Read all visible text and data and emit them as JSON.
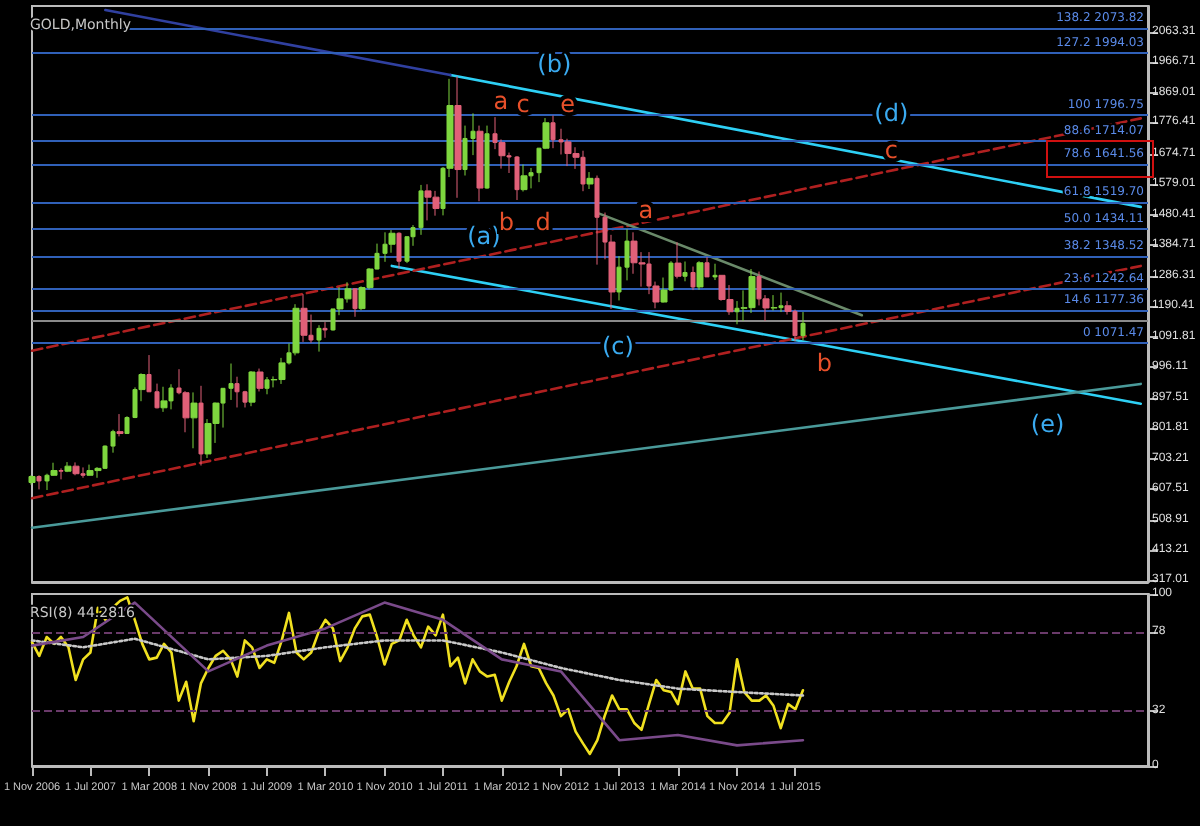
{
  "chart_data": [
    {
      "type": "candlestick",
      "title": "GOLD,Monthly",
      "x": [
        "2006-11",
        "2006-12",
        "2007-01",
        "2007-02",
        "2007-03",
        "2007-04",
        "2007-05",
        "2007-06",
        "2007-07",
        "2007-08",
        "2007-09",
        "2007-10",
        "2007-11",
        "2007-12",
        "2008-01",
        "2008-02",
        "2008-03",
        "2008-04",
        "2008-05",
        "2008-06",
        "2008-07",
        "2008-08",
        "2008-09",
        "2008-10",
        "2008-11",
        "2008-12",
        "2009-01",
        "2009-02",
        "2009-03",
        "2009-04",
        "2009-05",
        "2009-06",
        "2009-07",
        "2009-08",
        "2009-09",
        "2009-10",
        "2009-11",
        "2009-12",
        "2010-01",
        "2010-02",
        "2010-03",
        "2010-04",
        "2010-05",
        "2010-06",
        "2010-07",
        "2010-08",
        "2010-09",
        "2010-10",
        "2010-11",
        "2010-12",
        "2011-01",
        "2011-02",
        "2011-03",
        "2011-04",
        "2011-05",
        "2011-06",
        "2011-07",
        "2011-08",
        "2011-09",
        "2011-10",
        "2011-11",
        "2011-12",
        "2012-01",
        "2012-02",
        "2012-03",
        "2012-04",
        "2012-05",
        "2012-06",
        "2012-07",
        "2012-08",
        "2012-09",
        "2012-10",
        "2012-11",
        "2012-12",
        "2013-01",
        "2013-02",
        "2013-03",
        "2013-04",
        "2013-05",
        "2013-06",
        "2013-07",
        "2013-08",
        "2013-09",
        "2013-10",
        "2013-11",
        "2013-12",
        "2014-01",
        "2014-02",
        "2014-03",
        "2014-04",
        "2014-05",
        "2014-06",
        "2014-07",
        "2014-08",
        "2014-09",
        "2014-10",
        "2014-11",
        "2014-12",
        "2015-01",
        "2015-02",
        "2015-03",
        "2015-04",
        "2015-05",
        "2015-06",
        "2015-07",
        "2015-08"
      ],
      "ohlc": [
        [
          627,
          650,
          620,
          646
        ],
        [
          646,
          650,
          605,
          632
        ],
        [
          632,
          655,
          603,
          650
        ],
        [
          650,
          690,
          648,
          665
        ],
        [
          665,
          672,
          637,
          663
        ],
        [
          663,
          692,
          660,
          679
        ],
        [
          679,
          691,
          650,
          655
        ],
        [
          655,
          675,
          642,
          650
        ],
        [
          650,
          684,
          649,
          665
        ],
        [
          665,
          676,
          642,
          672
        ],
        [
          672,
          745,
          670,
          743
        ],
        [
          743,
          795,
          722,
          789
        ],
        [
          789,
          845,
          774,
          783
        ],
        [
          783,
          838,
          782,
          834
        ],
        [
          834,
          930,
          832,
          923
        ],
        [
          923,
          975,
          886,
          971
        ],
        [
          971,
          1033,
          915,
          916
        ],
        [
          916,
          942,
          863,
          865
        ],
        [
          865,
          932,
          852,
          887
        ],
        [
          887,
          940,
          860,
          928
        ],
        [
          928,
          988,
          908,
          913
        ],
        [
          913,
          918,
          787,
          833
        ],
        [
          833,
          914,
          736,
          880
        ],
        [
          880,
          935,
          681,
          718
        ],
        [
          718,
          829,
          705,
          815
        ],
        [
          815,
          882,
          753,
          880
        ],
        [
          880,
          928,
          802,
          927
        ],
        [
          927,
          1006,
          890,
          942
        ],
        [
          942,
          964,
          866,
          916
        ],
        [
          916,
          919,
          866,
          883
        ],
        [
          883,
          982,
          870,
          979
        ],
        [
          979,
          990,
          917,
          927
        ],
        [
          927,
          963,
          908,
          954
        ],
        [
          954,
          965,
          930,
          955
        ],
        [
          955,
          1024,
          941,
          1008
        ],
        [
          1008,
          1070,
          1003,
          1040
        ],
        [
          1040,
          1195,
          1032,
          1182
        ],
        [
          1182,
          1227,
          1075,
          1096
        ],
        [
          1096,
          1162,
          1072,
          1081
        ],
        [
          1081,
          1128,
          1044,
          1118
        ],
        [
          1118,
          1138,
          1088,
          1113
        ],
        [
          1113,
          1180,
          1111,
          1180
        ],
        [
          1180,
          1249,
          1160,
          1212
        ],
        [
          1212,
          1265,
          1200,
          1244
        ],
        [
          1244,
          1245,
          1155,
          1181
        ],
        [
          1181,
          1252,
          1176,
          1248
        ],
        [
          1248,
          1310,
          1242,
          1307
        ],
        [
          1307,
          1388,
          1306,
          1357
        ],
        [
          1357,
          1424,
          1330,
          1386
        ],
        [
          1386,
          1431,
          1359,
          1421
        ],
        [
          1421,
          1424,
          1309,
          1332
        ],
        [
          1332,
          1411,
          1326,
          1410
        ],
        [
          1410,
          1447,
          1381,
          1439
        ],
        [
          1439,
          1575,
          1416,
          1556
        ],
        [
          1556,
          1577,
          1462,
          1536
        ],
        [
          1536,
          1556,
          1477,
          1500
        ],
        [
          1500,
          1632,
          1478,
          1628
        ],
        [
          1628,
          1913,
          1600,
          1828
        ],
        [
          1828,
          1921,
          1534,
          1624
        ],
        [
          1624,
          1764,
          1605,
          1723
        ],
        [
          1723,
          1803,
          1670,
          1746
        ],
        [
          1746,
          1764,
          1523,
          1565
        ],
        [
          1565,
          1764,
          1563,
          1738
        ],
        [
          1738,
          1791,
          1689,
          1710
        ],
        [
          1710,
          1720,
          1627,
          1668
        ],
        [
          1668,
          1678,
          1613,
          1664
        ],
        [
          1664,
          1667,
          1527,
          1560
        ],
        [
          1560,
          1640,
          1554,
          1604
        ],
        [
          1604,
          1629,
          1564,
          1614
        ],
        [
          1614,
          1693,
          1584,
          1692
        ],
        [
          1692,
          1788,
          1689,
          1773
        ],
        [
          1773,
          1796,
          1692,
          1719
        ],
        [
          1719,
          1754,
          1672,
          1712
        ],
        [
          1712,
          1722,
          1635,
          1675
        ],
        [
          1675,
          1695,
          1626,
          1663
        ],
        [
          1663,
          1684,
          1555,
          1578
        ],
        [
          1578,
          1616,
          1562,
          1596
        ],
        [
          1596,
          1605,
          1321,
          1472
        ],
        [
          1472,
          1487,
          1338,
          1393
        ],
        [
          1393,
          1416,
          1180,
          1234
        ],
        [
          1234,
          1348,
          1207,
          1313
        ],
        [
          1313,
          1434,
          1271,
          1396
        ],
        [
          1396,
          1424,
          1292,
          1327
        ],
        [
          1327,
          1361,
          1251,
          1323
        ],
        [
          1323,
          1361,
          1227,
          1253
        ],
        [
          1253,
          1267,
          1182,
          1202
        ],
        [
          1202,
          1280,
          1200,
          1240
        ],
        [
          1240,
          1332,
          1238,
          1326
        ],
        [
          1326,
          1392,
          1277,
          1284
        ],
        [
          1284,
          1331,
          1268,
          1296
        ],
        [
          1296,
          1315,
          1240,
          1250
        ],
        [
          1250,
          1332,
          1241,
          1327
        ],
        [
          1327,
          1345,
          1282,
          1282
        ],
        [
          1282,
          1324,
          1272,
          1287
        ],
        [
          1287,
          1288,
          1206,
          1210
        ],
        [
          1210,
          1256,
          1161,
          1171
        ],
        [
          1171,
          1205,
          1131,
          1182
        ],
        [
          1182,
          1239,
          1142,
          1184
        ],
        [
          1184,
          1307,
          1167,
          1283
        ],
        [
          1283,
          1299,
          1191,
          1212
        ],
        [
          1212,
          1224,
          1142,
          1183
        ],
        [
          1183,
          1224,
          1175,
          1184
        ],
        [
          1184,
          1232,
          1170,
          1190
        ],
        [
          1190,
          1205,
          1162,
          1172
        ],
        [
          1172,
          1178,
          1077,
          1095
        ],
        [
          1095,
          1170,
          1080,
          1134
        ]
      ],
      "colors": [
        "#7ed63f",
        "#e06078",
        "#7ed63f",
        "#7ed63f",
        "#e06078",
        "#7ed63f",
        "#e06078",
        "#e06078",
        "#7ed63f",
        "#7ed63f",
        "#7ed63f",
        "#7ed63f",
        "#e06078",
        "#7ed63f",
        "#7ed63f",
        "#7ed63f",
        "#e06078",
        "#e06078",
        "#7ed63f",
        "#7ed63f",
        "#e06078",
        "#e06078",
        "#7ed63f",
        "#e06078",
        "#7ed63f",
        "#7ed63f",
        "#7ed63f",
        "#7ed63f",
        "#e06078",
        "#e06078",
        "#7ed63f",
        "#e06078",
        "#7ed63f",
        "#7ed63f",
        "#7ed63f",
        "#7ed63f",
        "#7ed63f",
        "#e06078",
        "#e06078",
        "#7ed63f",
        "#e06078",
        "#7ed63f",
        "#7ed63f",
        "#7ed63f",
        "#e06078",
        "#7ed63f",
        "#7ed63f",
        "#7ed63f",
        "#7ed63f",
        "#7ed63f",
        "#e06078",
        "#7ed63f",
        "#7ed63f",
        "#7ed63f",
        "#e06078",
        "#e06078",
        "#7ed63f",
        "#7ed63f",
        "#e06078",
        "#7ed63f",
        "#7ed63f",
        "#e06078",
        "#7ed63f",
        "#e06078",
        "#e06078",
        "#e06078",
        "#e06078",
        "#7ed63f",
        "#7ed63f",
        "#7ed63f",
        "#7ed63f",
        "#e06078",
        "#e06078",
        "#e06078",
        "#e06078",
        "#e06078",
        "#7ed63f",
        "#e06078",
        "#e06078",
        "#e06078",
        "#7ed63f",
        "#7ed63f",
        "#e06078",
        "#e06078",
        "#e06078",
        "#e06078",
        "#7ed63f",
        "#7ed63f",
        "#e06078",
        "#7ed63f",
        "#e06078",
        "#7ed63f",
        "#e06078",
        "#7ed63f",
        "#e06078",
        "#e06078",
        "#7ed63f",
        "#7ed63f",
        "#7ed63f",
        "#e06078",
        "#e06078",
        "#7ed63f",
        "#7ed63f",
        "#e06078",
        "#e06078",
        "#7ed63f"
      ],
      "xlim": [
        "2006-11",
        "2019-07"
      ],
      "ylim": [
        310,
        2145
      ],
      "yticks": [
        2063.31,
        1966.71,
        1869.01,
        1776.41,
        1674.71,
        1579.01,
        1480.41,
        1384.71,
        1286.31,
        1190.41,
        1091.81,
        996.11,
        897.51,
        801.81,
        703.21,
        607.51,
        508.91,
        413.21,
        317.01
      ],
      "tick_labels": "y",
      "grid": false,
      "ref_lines": [
        {
          "axis": "y",
          "value": 2073.82,
          "label": "138.2 2073.82",
          "color": "#3060b8"
        },
        {
          "axis": "y",
          "value": 1994.03,
          "label": "127.2 1994.03",
          "color": "#3060b8"
        },
        {
          "axis": "y",
          "value": 1796.75,
          "label": "100 1796.75",
          "color": "#3060b8"
        },
        {
          "axis": "y",
          "value": 1714.07,
          "label": "88.6 1714.07",
          "color": "#3060b8"
        },
        {
          "axis": "y",
          "value": 1641.56,
          "label": "78.6 1641.56",
          "color": "#3060b8"
        },
        {
          "axis": "y",
          "value": 1519.7,
          "label": "61.8 1519.70",
          "color": "#3060b8"
        },
        {
          "axis": "y",
          "value": 1434.11,
          "label": "50.0 1434.11",
          "color": "#3060b8"
        },
        {
          "axis": "y",
          "value": 1348.52,
          "label": "38.2 1348.52",
          "color": "#3060b8"
        },
        {
          "axis": "y",
          "value": 1242.64,
          "label": "23.6 1242.64",
          "color": "#3060b8"
        },
        {
          "axis": "y",
          "value": 1177.36,
          "label": "14.6 1177.36",
          "color": "#3060b8"
        },
        {
          "axis": "y",
          "value": 1071.47,
          "label": "0 1071.47",
          "color": "#3060b8"
        },
        {
          "axis": "y",
          "value": 1141,
          "color": "#8a8a8a"
        }
      ],
      "series": [
        {
          "type": "line",
          "color": "#2ed0f5",
          "x": [
            "2011-08",
            "2019-06"
          ],
          "values": [
            1925,
            1505
          ]
        },
        {
          "type": "line",
          "color": "#2ed0f5",
          "x": [
            "2010-12",
            "2019-06"
          ],
          "values": [
            1317,
            878
          ]
        },
        {
          "type": "line",
          "color": "#b02020",
          "line_style": "dashed",
          "x": [
            "2006-11",
            "2019-06"
          ],
          "values": [
            1047,
            1787
          ]
        },
        {
          "type": "line",
          "color": "#b02020",
          "line_style": "dashed",
          "x": [
            "2006-11",
            "2019-06"
          ],
          "values": [
            577,
            1317
          ]
        },
        {
          "type": "line",
          "color": "#4a9a9a",
          "x": [
            "2006-11",
            "2019-06"
          ],
          "values": [
            483,
            941
          ]
        },
        {
          "type": "line",
          "color": "#3040a0",
          "x": [
            "2007-09",
            "2011-08"
          ],
          "values": [
            2132,
            1925
          ]
        },
        {
          "type": "line",
          "color": "#6a8a6a",
          "x": [
            "2013-04",
            "2016-04"
          ],
          "values": [
            1486,
            1160
          ]
        }
      ],
      "annotations": [
        "(a)",
        "(b)",
        "(c)",
        "(d)",
        "(e)",
        "a",
        "b",
        "c",
        "d",
        "e",
        "a",
        "b",
        "c"
      ]
    },
    {
      "type": "line",
      "title": "RSI(8) 44.2816",
      "xlim": [
        "2006-11",
        "2019-07"
      ],
      "ylim": [
        0,
        100
      ],
      "yticks": [
        0,
        32,
        78,
        100
      ],
      "xticks": [
        {
          "value": "2006-11-01",
          "label": "1 Nov 2006"
        },
        {
          "value": "2007-07-01",
          "label": "1 Jul 2007"
        },
        {
          "value": "2008-03-01",
          "label": "1 Mar 2008"
        },
        {
          "value": "2008-11-01",
          "label": "1 Nov 2008"
        },
        {
          "value": "2009-07-01",
          "label": "1 Jul 2009"
        },
        {
          "value": "2010-03-01",
          "label": "1 Mar 2010"
        },
        {
          "value": "2010-11-01",
          "label": "1 Nov 2010"
        },
        {
          "value": "2011-07-01",
          "label": "1 Jul 2011"
        },
        {
          "value": "2012-03-01",
          "label": "1 Mar 2012"
        },
        {
          "value": "2012-11-01",
          "label": "1 Nov 2012"
        },
        {
          "value": "2013-07-01",
          "label": "1 Jul 2013"
        },
        {
          "value": "2014-03-01",
          "label": "1 Mar 2014"
        },
        {
          "value": "2014-11-01",
          "label": "1 Nov 2014"
        },
        {
          "value": "2015-07-01",
          "label": "1 Jul 2015"
        }
      ],
      "grid": false,
      "ref_lines": [
        {
          "axis": "y",
          "value": 78,
          "color": "#6a3a6a",
          "line_style": "dashed"
        },
        {
          "axis": "y",
          "value": 32,
          "color": "#6a3a6a",
          "line_style": "dashed"
        }
      ],
      "x": [
        "2006-11",
        "2006-12",
        "2007-01",
        "2007-02",
        "2007-03",
        "2007-04",
        "2007-05",
        "2007-06",
        "2007-07",
        "2007-08",
        "2007-09",
        "2007-10",
        "2007-11",
        "2007-12",
        "2008-01",
        "2008-02",
        "2008-03",
        "2008-04",
        "2008-05",
        "2008-06",
        "2008-07",
        "2008-08",
        "2008-09",
        "2008-10",
        "2008-11",
        "2008-12",
        "2009-01",
        "2009-02",
        "2009-03",
        "2009-04",
        "2009-05",
        "2009-06",
        "2009-07",
        "2009-08",
        "2009-09",
        "2009-10",
        "2009-11",
        "2009-12",
        "2010-01",
        "2010-02",
        "2010-03",
        "2010-04",
        "2010-05",
        "2010-06",
        "2010-07",
        "2010-08",
        "2010-09",
        "2010-10",
        "2010-11",
        "2010-12",
        "2011-01",
        "2011-02",
        "2011-03",
        "2011-04",
        "2011-05",
        "2011-06",
        "2011-07",
        "2011-08",
        "2011-09",
        "2011-10",
        "2011-11",
        "2011-12",
        "2012-01",
        "2012-02",
        "2012-03",
        "2012-04",
        "2012-05",
        "2012-06",
        "2012-07",
        "2012-08",
        "2012-09",
        "2012-10",
        "2012-11",
        "2012-12",
        "2013-01",
        "2013-02",
        "2013-03",
        "2013-04",
        "2013-05",
        "2013-06",
        "2013-07",
        "2013-08",
        "2013-09",
        "2013-10",
        "2013-11",
        "2013-12",
        "2014-01",
        "2014-02",
        "2014-03",
        "2014-04",
        "2014-05",
        "2014-06",
        "2014-07",
        "2014-08",
        "2014-09",
        "2014-10",
        "2014-11",
        "2014-12",
        "2015-01",
        "2015-02",
        "2015-03",
        "2015-04",
        "2015-05",
        "2015-06",
        "2015-07",
        "2015-08"
      ],
      "series": [
        {
          "color": "#f0e020",
          "values": [
            72,
            64,
            75,
            71,
            75,
            69,
            50,
            62,
            66,
            92,
            85,
            92,
            96,
            98,
            85,
            71,
            62,
            63,
            71,
            66,
            38,
            49,
            26,
            48,
            57,
            64,
            67,
            62,
            52,
            73,
            69,
            57,
            62,
            60,
            73,
            89,
            66,
            62,
            66,
            78,
            85,
            80,
            61,
            69,
            80,
            87,
            88,
            75,
            59,
            71,
            73,
            85,
            76,
            69,
            81,
            76,
            88,
            58,
            63,
            48,
            62,
            55,
            52,
            53,
            38,
            49,
            58,
            71,
            58,
            57,
            48,
            41,
            29,
            33,
            20,
            13,
            7,
            15,
            29,
            41,
            33,
            33,
            25,
            21,
            36,
            50,
            44,
            43,
            36,
            55,
            45,
            45,
            29,
            25,
            25,
            31,
            62,
            43,
            38,
            38,
            41,
            35,
            22,
            36,
            33,
            44
          ]
        },
        {
          "color": "#c8c8c8",
          "line_style": "dotted",
          "x": [
            "2006-11",
            "2007-06",
            "2008-01",
            "2008-11",
            "2009-07",
            "2010-03",
            "2010-11",
            "2011-07",
            "2012-03",
            "2012-11",
            "2013-07",
            "2014-03",
            "2014-11",
            "2015-08"
          ],
          "values": [
            73,
            69,
            74,
            62,
            64,
            69,
            73,
            73,
            66,
            57,
            50,
            45,
            43,
            41
          ]
        },
        {
          "color": "#7a4a8a",
          "x": [
            "2006-11",
            "2007-06",
            "2008-01",
            "2008-11",
            "2009-07",
            "2010-03",
            "2010-11",
            "2011-07",
            "2012-03",
            "2012-11",
            "2013-07",
            "2014-03",
            "2014-11",
            "2015-08"
          ],
          "values": [
            70,
            75,
            95,
            55,
            70,
            80,
            95,
            85,
            62,
            55,
            15,
            18,
            12,
            15
          ]
        }
      ]
    }
  ]
}
